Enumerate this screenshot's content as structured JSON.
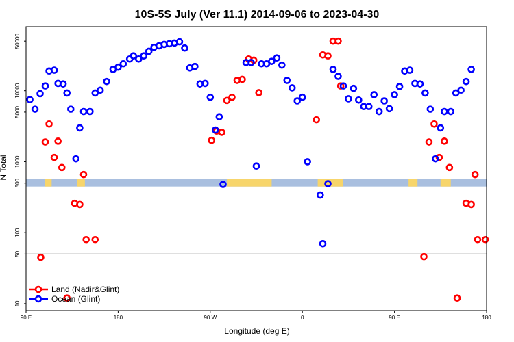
{
  "chart_data": {
    "type": "scatter",
    "title": "10S-5S July (Ver 11.1)   2014-09-06 to 2023-04-30",
    "xlabel": "Longitude (deg E)",
    "ylabel": "N Total",
    "y_scale": "log",
    "xlim": [
      90,
      450
    ],
    "ylim": [
      8,
      80000
    ],
    "reference_line_y": 50,
    "x_ticks": [
      {
        "value": 90,
        "label": "90 E"
      },
      {
        "value": 162,
        "label": "180"
      },
      {
        "value": 234,
        "label": "90 W"
      },
      {
        "value": 306,
        "label": "0"
      },
      {
        "value": 378,
        "label": "90 E"
      },
      {
        "value": 450,
        "label": "180"
      }
    ],
    "y_ticks": [
      {
        "value": 10,
        "label": "10"
      },
      {
        "value": 50,
        "label": "50"
      },
      {
        "value": 100,
        "label": "100"
      },
      {
        "value": 500,
        "label": "500"
      },
      {
        "value": 1000,
        "label": "1000"
      },
      {
        "value": 5000,
        "label": "5000"
      },
      {
        "value": 10000,
        "label": "10000"
      },
      {
        "value": 50000,
        "label": "50000"
      }
    ],
    "map_strip": {
      "ocean_color": "#a9bfdf",
      "land_color": "#f7d56b",
      "land_ranges": [
        [
          105,
          110
        ],
        [
          130,
          136
        ],
        [
          247,
          282
        ],
        [
          318,
          338
        ],
        [
          389,
          396
        ],
        [
          414,
          422
        ]
      ]
    },
    "legend": {
      "position": "bottom-left"
    },
    "series": [
      {
        "name": "Land (Nadir&Glint)",
        "color": "#ff0000",
        "points": [
          [
            101.5,
            45
          ],
          [
            105,
            1900
          ],
          [
            108,
            3400
          ],
          [
            112,
            1150
          ],
          [
            115,
            1950
          ],
          [
            118,
            830
          ],
          [
            122,
            12
          ],
          [
            128,
            260
          ],
          [
            132,
            250
          ],
          [
            135,
            660
          ],
          [
            137,
            80
          ],
          [
            144,
            80
          ],
          [
            235,
            2000
          ],
          [
            239,
            2700
          ],
          [
            243,
            2600
          ],
          [
            247,
            7300
          ],
          [
            251,
            8100
          ],
          [
            255,
            14000
          ],
          [
            259,
            14500
          ],
          [
            264,
            28000
          ],
          [
            268,
            27000
          ],
          [
            272,
            9400
          ],
          [
            317,
            3900
          ],
          [
            322,
            32000
          ],
          [
            326,
            31000
          ],
          [
            330,
            50000
          ],
          [
            334,
            50000
          ],
          [
            336,
            11700
          ],
          [
            401,
            46
          ],
          [
            405,
            1900
          ],
          [
            409,
            3400
          ],
          [
            413,
            1150
          ],
          [
            417,
            1950
          ],
          [
            421,
            830
          ],
          [
            427,
            12
          ],
          [
            434,
            260
          ],
          [
            438,
            250
          ],
          [
            441,
            660
          ],
          [
            443,
            80
          ],
          [
            449,
            80
          ]
        ]
      },
      {
        "name": "Ocean (Glint)",
        "color": "#0000ff",
        "points": [
          [
            93,
            7500
          ],
          [
            97,
            5500
          ],
          [
            101,
            9100
          ],
          [
            105,
            11700
          ],
          [
            108,
            19000
          ],
          [
            112,
            19500
          ],
          [
            115,
            12700
          ],
          [
            119,
            12500
          ],
          [
            122,
            9300
          ],
          [
            125,
            5500
          ],
          [
            129,
            1100
          ],
          [
            132,
            3000
          ],
          [
            135,
            5100
          ],
          [
            140,
            5100
          ],
          [
            144,
            9300
          ],
          [
            148,
            10200
          ],
          [
            153,
            13500
          ],
          [
            158,
            20000
          ],
          [
            162,
            21500
          ],
          [
            166,
            24000
          ],
          [
            171,
            28000
          ],
          [
            174,
            31000
          ],
          [
            178,
            28000
          ],
          [
            182,
            31000
          ],
          [
            186,
            36000
          ],
          [
            190,
            41000
          ],
          [
            194,
            43000
          ],
          [
            198,
            45000
          ],
          [
            202,
            46000
          ],
          [
            206,
            47000
          ],
          [
            210,
            49000
          ],
          [
            214,
            40000
          ],
          [
            218,
            21000
          ],
          [
            222,
            22000
          ],
          [
            226,
            12500
          ],
          [
            230,
            12700
          ],
          [
            234,
            8100
          ],
          [
            238,
            2800
          ],
          [
            241,
            4300
          ],
          [
            244,
            480
          ],
          [
            262,
            25000
          ],
          [
            266,
            25000
          ],
          [
            270,
            870
          ],
          [
            274,
            24000
          ],
          [
            278,
            24000
          ],
          [
            282,
            26000
          ],
          [
            286,
            29000
          ],
          [
            290,
            23000
          ],
          [
            294,
            14000
          ],
          [
            298,
            11000
          ],
          [
            302,
            7200
          ],
          [
            306,
            8100
          ],
          [
            310,
            1000
          ],
          [
            320,
            340
          ],
          [
            322,
            70
          ],
          [
            326,
            490
          ],
          [
            330,
            20000
          ],
          [
            334,
            16000
          ],
          [
            338,
            11700
          ],
          [
            342,
            7700
          ],
          [
            346,
            10800
          ],
          [
            350,
            7400
          ],
          [
            354,
            6000
          ],
          [
            358,
            6000
          ],
          [
            362,
            8800
          ],
          [
            366,
            5100
          ],
          [
            370,
            7200
          ],
          [
            374,
            5600
          ],
          [
            378,
            8800
          ],
          [
            382,
            11500
          ],
          [
            386,
            19000
          ],
          [
            390,
            19500
          ],
          [
            394,
            12700
          ],
          [
            398,
            12500
          ],
          [
            402,
            9300
          ],
          [
            406,
            5500
          ],
          [
            410,
            1100
          ],
          [
            414,
            3000
          ],
          [
            417,
            5100
          ],
          [
            422,
            5100
          ],
          [
            426,
            9300
          ],
          [
            430,
            10200
          ],
          [
            434,
            13500
          ],
          [
            438,
            20000
          ]
        ]
      }
    ]
  }
}
